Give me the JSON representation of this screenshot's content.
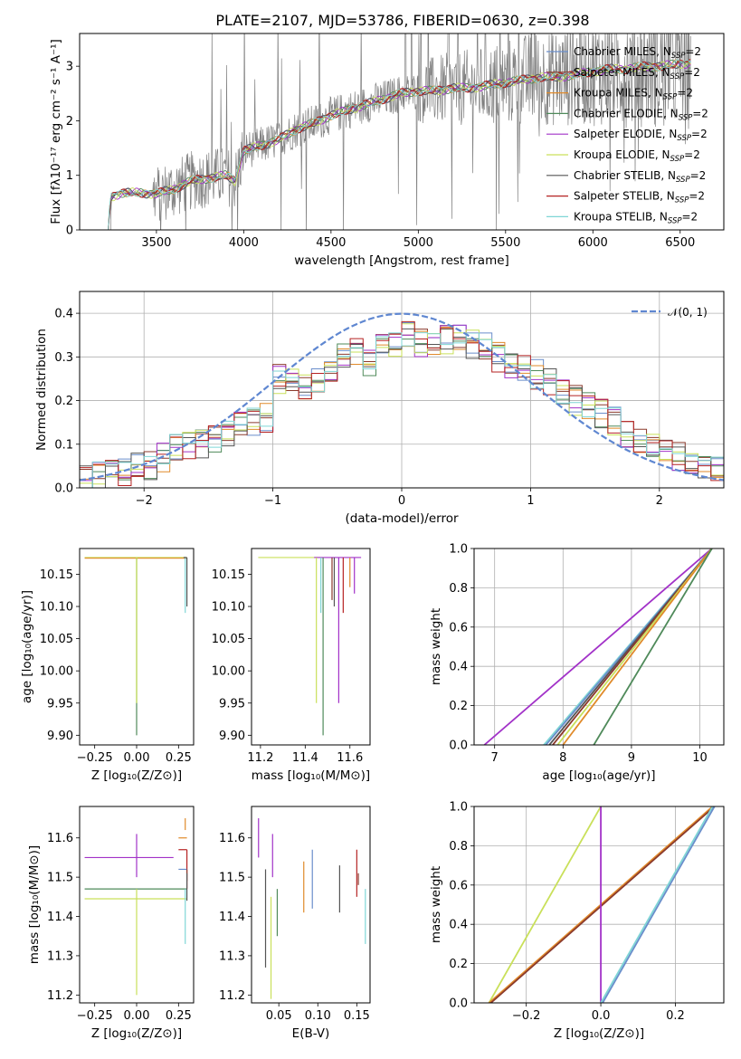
{
  "figure": {
    "title": "PLATE=2107, MJD=53786, FIBERID=0630, z=0.398"
  },
  "colors": {
    "series": [
      "#6a8ecb",
      "#8b3a2c",
      "#e08a2a",
      "#4f8a5a",
      "#a232c8",
      "#c9e05a",
      "#555555",
      "#b52222",
      "#7fd6d6"
    ],
    "data_spectrum": "#808080",
    "normal_curve": "#5f87d1",
    "grid": "#b0b0b0"
  },
  "chart_data": [
    {
      "id": "spectrum",
      "type": "line",
      "xlabel": "wavelength [Angstrom, rest frame]",
      "ylabel": "Flux [fλ10⁻¹⁷ erg cm⁻² s⁻¹ A⁻¹]",
      "xlim": [
        3060,
        6750
      ],
      "ylim": [
        0,
        3.6
      ],
      "xticks": [
        3500,
        4000,
        4500,
        5000,
        5500,
        6000,
        6500
      ],
      "yticks": [
        0,
        1,
        2,
        3
      ],
      "grid": false,
      "legend_position": "top-right",
      "legend": [
        "Chabrier MILES, N_SSP=2",
        "Salpeter MILES, N_SSP=2",
        "Kroupa MILES, N_SSP=2",
        "Chabrier ELODIE, N_SSP=2",
        "Salpeter ELODIE, N_SSP=2",
        "Kroupa ELODIE, N_SSP=2",
        "Chabrier STELIB, N_SSP=2",
        "Salpeter STELIB, N_SSP=2",
        "Kroupa STELIB, N_SSP=2"
      ],
      "model_continuum": {
        "x": [
          3200,
          3220,
          3240,
          3300,
          3400,
          3500,
          3600,
          3700,
          3800,
          3900,
          3950,
          4000,
          4100,
          4200,
          4300,
          4400,
          4500,
          4600,
          4700,
          4800,
          4900,
          5000,
          5100,
          5200,
          5300,
          5400,
          5500,
          5600,
          5700,
          5800,
          5900,
          6000,
          6100,
          6200,
          6300,
          6400,
          6500,
          6560
        ],
        "y": [
          0.0,
          0.0,
          0.6,
          0.68,
          0.68,
          0.66,
          0.75,
          0.9,
          0.95,
          1.0,
          0.9,
          1.45,
          1.55,
          1.65,
          1.85,
          1.95,
          2.1,
          2.2,
          2.3,
          2.4,
          2.5,
          2.55,
          2.55,
          2.6,
          2.6,
          2.65,
          2.7,
          2.75,
          2.8,
          2.8,
          2.85,
          2.9,
          2.95,
          2.95,
          3.0,
          3.0,
          3.05,
          3.05
        ]
      }
    },
    {
      "id": "residuals",
      "type": "line",
      "xlabel": "(data-model)/error",
      "ylabel": "Normed distribution",
      "xlim": [
        -2.5,
        2.5
      ],
      "ylim": [
        0,
        0.45
      ],
      "xticks": [
        -2,
        -1,
        0,
        1,
        2
      ],
      "yticks": [
        0.0,
        0.1,
        0.2,
        0.3,
        0.4
      ],
      "grid": true,
      "legend_position": "top-right",
      "legend": [
        "𝒩(0, 1)"
      ],
      "gaussian": {
        "mean": 0,
        "sigma": 1
      },
      "histogram_bin_width": 0.1,
      "histogram_mean": {
        "x": [
          -2.45,
          -2.35,
          -2.25,
          -2.15,
          -2.05,
          -1.95,
          -1.85,
          -1.75,
          -1.65,
          -1.55,
          -1.45,
          -1.35,
          -1.25,
          -1.15,
          -1.05,
          -0.95,
          -0.85,
          -0.75,
          -0.65,
          -0.55,
          -0.45,
          -0.35,
          -0.25,
          -0.15,
          -0.05,
          0.05,
          0.15,
          0.25,
          0.35,
          0.45,
          0.55,
          0.65,
          0.75,
          0.85,
          0.95,
          1.05,
          1.15,
          1.25,
          1.35,
          1.45,
          1.55,
          1.65,
          1.75,
          1.85,
          1.95,
          2.05,
          2.15,
          2.25,
          2.35,
          2.45
        ],
        "y": [
          0.02,
          0.025,
          0.03,
          0.04,
          0.045,
          0.05,
          0.07,
          0.09,
          0.1,
          0.1,
          0.11,
          0.12,
          0.14,
          0.15,
          0.16,
          0.25,
          0.24,
          0.23,
          0.25,
          0.27,
          0.3,
          0.31,
          0.29,
          0.32,
          0.32,
          0.35,
          0.33,
          0.33,
          0.34,
          0.34,
          0.33,
          0.33,
          0.3,
          0.28,
          0.27,
          0.26,
          0.24,
          0.22,
          0.2,
          0.19,
          0.17,
          0.15,
          0.12,
          0.11,
          0.1,
          0.08,
          0.07,
          0.06,
          0.05,
          0.04
        ]
      }
    },
    {
      "id": "age_vs_Z",
      "type": "scatter",
      "xlabel": "Z [log₁₀(Z/Z⊙)]",
      "ylabel": "age  [log₁₀(age/yr)]",
      "xlim": [
        -0.34,
        0.34
      ],
      "ylim": [
        9.885,
        10.19
      ],
      "xticks": [
        -0.25,
        0.0,
        0.25
      ],
      "xticklabels": [
        "−0.25",
        "0.00",
        "0.25"
      ],
      "yticks": [
        9.9,
        9.95,
        10.0,
        10.05,
        10.1,
        10.15
      ],
      "grid": false,
      "lines": [
        {
          "x": [
            -0.31,
            0.3
          ],
          "y": [
            10.176,
            10.176
          ],
          "color_index": 5
        },
        {
          "x": [
            -0.31,
            0.3
          ],
          "y": [
            10.175,
            10.175
          ],
          "color_index": 2
        },
        {
          "x": [
            0.0,
            0.0
          ],
          "y": [
            9.9,
            10.176
          ],
          "color_index": 3
        },
        {
          "x": [
            0.0,
            0.0
          ],
          "y": [
            9.95,
            10.176
          ],
          "color_index": 5
        },
        {
          "x": [
            0.29,
            0.29
          ],
          "y": [
            10.09,
            10.176
          ],
          "color_index": 8
        },
        {
          "x": [
            0.3,
            0.3
          ],
          "y": [
            10.1,
            10.176
          ],
          "color_index": 6
        },
        {
          "x": [
            0.28,
            0.3
          ],
          "y": [
            10.176,
            10.176
          ],
          "color_index": 6
        }
      ]
    },
    {
      "id": "age_vs_mass",
      "type": "scatter",
      "xlabel": "mass [log₁₀(M/M⊙)]",
      "ylabel": "",
      "xlim": [
        11.16,
        11.69
      ],
      "ylim": [
        9.885,
        10.19
      ],
      "xticks": [
        11.2,
        11.4,
        11.6
      ],
      "yticks": [
        9.9,
        9.95,
        10.0,
        10.05,
        10.1,
        10.15
      ],
      "grid": false,
      "lines": [
        {
          "x": [
            11.19,
            11.47
          ],
          "y": [
            10.176,
            10.176
          ],
          "color_index": 5
        },
        {
          "x": [
            11.44,
            11.65
          ],
          "y": [
            10.176,
            10.176
          ],
          "color_index": 4
        },
        {
          "x": [
            11.45,
            11.45
          ],
          "y": [
            9.95,
            10.176
          ],
          "color_index": 5
        },
        {
          "x": [
            11.48,
            11.48
          ],
          "y": [
            9.9,
            10.176
          ],
          "color_index": 3
        },
        {
          "x": [
            11.47,
            11.47
          ],
          "y": [
            10.09,
            10.176
          ],
          "color_index": 8
        },
        {
          "x": [
            11.52,
            11.52
          ],
          "y": [
            10.11,
            10.176
          ],
          "color_index": 1
        },
        {
          "x": [
            11.53,
            11.53
          ],
          "y": [
            10.1,
            10.176
          ],
          "color_index": 6
        },
        {
          "x": [
            11.55,
            11.55
          ],
          "y": [
            9.95,
            10.176
          ],
          "color_index": 4
        },
        {
          "x": [
            11.57,
            11.57
          ],
          "y": [
            10.09,
            10.176
          ],
          "color_index": 7
        },
        {
          "x": [
            11.6,
            11.6
          ],
          "y": [
            10.13,
            10.176
          ],
          "color_index": 2
        },
        {
          "x": [
            11.62,
            11.62
          ],
          "y": [
            10.12,
            10.176
          ],
          "color_index": 4
        }
      ]
    },
    {
      "id": "age_mass_weight",
      "type": "line",
      "xlabel": "age  [log₁₀(age/yr)]",
      "ylabel": "mass weight",
      "xlim": [
        6.7,
        10.35
      ],
      "ylim": [
        0,
        1.0
      ],
      "xticks": [
        7,
        8,
        9,
        10
      ],
      "yticks": [
        0.0,
        0.2,
        0.4,
        0.6,
        0.8,
        1.0
      ],
      "grid": true,
      "lines": [
        {
          "x": [
            6.85,
            10.176
          ],
          "y": [
            0,
            1
          ],
          "color_index": 4
        },
        {
          "x": [
            7.72,
            10.176
          ],
          "y": [
            0,
            1
          ],
          "color_index": 8
        },
        {
          "x": [
            7.75,
            10.176
          ],
          "y": [
            0,
            1
          ],
          "color_index": 0
        },
        {
          "x": [
            7.8,
            10.176
          ],
          "y": [
            0,
            1
          ],
          "color_index": 6
        },
        {
          "x": [
            7.85,
            10.176
          ],
          "y": [
            0,
            1
          ],
          "color_index": 1
        },
        {
          "x": [
            7.92,
            10.176
          ],
          "y": [
            0,
            1
          ],
          "color_index": 5
        },
        {
          "x": [
            8.0,
            10.176
          ],
          "y": [
            0,
            1
          ],
          "color_index": 2
        },
        {
          "x": [
            8.45,
            10.176
          ],
          "y": [
            0,
            1
          ],
          "color_index": 3
        }
      ]
    },
    {
      "id": "mass_vs_Z",
      "type": "scatter",
      "xlabel": "Z [log₁₀(Z/Z⊙)]",
      "ylabel": "mass [log₁₀(M/M⊙)]",
      "xlim": [
        -0.34,
        0.34
      ],
      "ylim": [
        11.18,
        11.68
      ],
      "xticks": [
        -0.25,
        0.0,
        0.25
      ],
      "xticklabels": [
        "−0.25",
        "0.00",
        "0.25"
      ],
      "yticks": [
        11.2,
        11.3,
        11.4,
        11.5,
        11.6
      ],
      "grid": false,
      "lines": [
        {
          "x": [
            -0.31,
            0.22
          ],
          "y": [
            11.55,
            11.55
          ],
          "color_index": 4
        },
        {
          "x": [
            0.0,
            0.0
          ],
          "y": [
            11.5,
            11.61
          ],
          "color_index": 4
        },
        {
          "x": [
            -0.31,
            0.3
          ],
          "y": [
            11.47,
            11.47
          ],
          "color_index": 3
        },
        {
          "x": [
            -0.31,
            0.3
          ],
          "y": [
            11.445,
            11.445
          ],
          "color_index": 5
        },
        {
          "x": [
            0.0,
            0.0
          ],
          "y": [
            11.2,
            11.47
          ],
          "color_index": 5
        },
        {
          "x": [
            0.25,
            0.3
          ],
          "y": [
            11.57,
            11.57
          ],
          "color_index": 7
        },
        {
          "x": [
            0.3,
            0.3
          ],
          "y": [
            11.47,
            11.57
          ],
          "color_index": 7
        },
        {
          "x": [
            0.29,
            0.29
          ],
          "y": [
            11.62,
            11.65
          ],
          "color_index": 2
        },
        {
          "x": [
            0.25,
            0.3
          ],
          "y": [
            11.6,
            11.6
          ],
          "color_index": 2
        },
        {
          "x": [
            0.29,
            0.29
          ],
          "y": [
            11.33,
            11.47
          ],
          "color_index": 8
        },
        {
          "x": [
            0.25,
            0.3
          ],
          "y": [
            11.52,
            11.52
          ],
          "color_index": 0
        },
        {
          "x": [
            0.3,
            0.3
          ],
          "y": [
            11.49,
            11.52
          ],
          "color_index": 1
        },
        {
          "x": [
            0.3,
            0.3
          ],
          "y": [
            11.44,
            11.51
          ],
          "color_index": 6
        }
      ]
    },
    {
      "id": "mass_vs_ebv",
      "type": "scatter",
      "xlabel": "E(B-V)",
      "ylabel": "",
      "xlim": [
        0.015,
        0.167
      ],
      "ylim": [
        11.18,
        11.68
      ],
      "xticks": [
        0.05,
        0.1,
        0.15
      ],
      "yticks": [
        11.2,
        11.3,
        11.4,
        11.5,
        11.6
      ],
      "grid": false,
      "lines": [
        {
          "x": [
            0.024,
            0.024
          ],
          "y": [
            11.55,
            11.65
          ],
          "color_index": 4
        },
        {
          "x": [
            0.033,
            0.033
          ],
          "y": [
            11.27,
            11.52
          ],
          "color_index": 6
        },
        {
          "x": [
            0.04,
            0.04
          ],
          "y": [
            11.19,
            11.45
          ],
          "color_index": 5
        },
        {
          "x": [
            0.042,
            0.042
          ],
          "y": [
            11.5,
            11.61
          ],
          "color_index": 4
        },
        {
          "x": [
            0.048,
            0.048
          ],
          "y": [
            11.35,
            11.47
          ],
          "color_index": 3
        },
        {
          "x": [
            0.082,
            0.082
          ],
          "y": [
            11.41,
            11.54
          ],
          "color_index": 2
        },
        {
          "x": [
            0.093,
            0.093
          ],
          "y": [
            11.42,
            11.57
          ],
          "color_index": 0
        },
        {
          "x": [
            0.128,
            0.128
          ],
          "y": [
            11.41,
            11.53
          ],
          "color_index": 6
        },
        {
          "x": [
            0.15,
            0.15
          ],
          "y": [
            11.45,
            11.57
          ],
          "color_index": 7
        },
        {
          "x": [
            0.152,
            0.152
          ],
          "y": [
            11.48,
            11.51
          ],
          "color_index": 1
        },
        {
          "x": [
            0.161,
            0.161
          ],
          "y": [
            11.33,
            11.47
          ],
          "color_index": 8
        }
      ]
    },
    {
      "id": "Z_mass_weight",
      "type": "line",
      "xlabel": "Z [log₁₀(Z/Z⊙)]",
      "ylabel": "mass weight",
      "xlim": [
        -0.34,
        0.33
      ],
      "ylim": [
        0,
        1.0
      ],
      "xticks": [
        -0.2,
        0.0,
        0.2
      ],
      "xticklabels": [
        "−0.2",
        "0.0",
        "0.2"
      ],
      "yticks": [
        0.0,
        0.2,
        0.4,
        0.6,
        0.8,
        1.0
      ],
      "grid": true,
      "lines": [
        {
          "x": [
            -0.3,
            0.0
          ],
          "y": [
            0,
            1
          ],
          "color_index": 5
        },
        {
          "x": [
            -0.3,
            0.3
          ],
          "y": [
            0,
            1
          ],
          "color_index": 2
        },
        {
          "x": [
            -0.295,
            0.305
          ],
          "y": [
            0,
            1
          ],
          "color_index": 1
        },
        {
          "x": [
            0.0,
            0.0
          ],
          "y": [
            0,
            1
          ],
          "color_index": 4
        },
        {
          "x": [
            0.0,
            0.3
          ],
          "y": [
            0,
            1
          ],
          "color_index": 8
        },
        {
          "x": [
            0.005,
            0.305
          ],
          "y": [
            0,
            1
          ],
          "color_index": 0
        }
      ]
    }
  ]
}
